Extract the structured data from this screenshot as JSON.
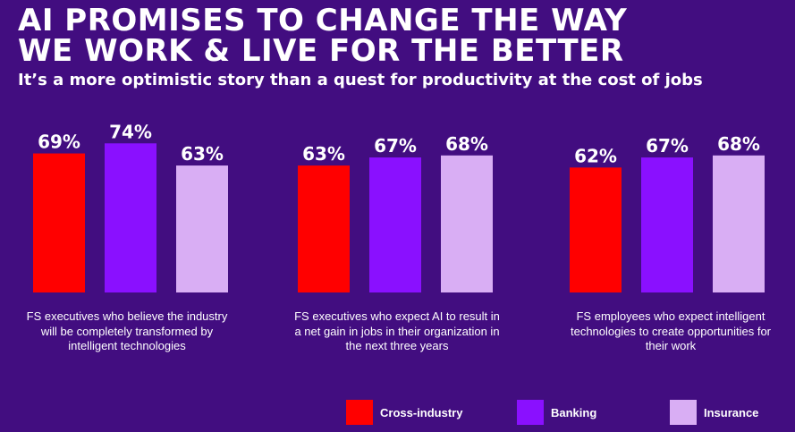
{
  "header": {
    "title_line1": "AI PROMISES TO CHANGE THE WAY",
    "title_line2": "WE WORK &  LIVE FOR THE BETTER",
    "subtitle": "It’s a more optimistic story than a quest for productivity at the cost of jobs"
  },
  "colors": {
    "background": "#420d80",
    "cross_industry": "#ff0000",
    "banking": "#8a10ff",
    "insurance": "#d9aef4"
  },
  "chart_data": {
    "type": "bar",
    "title": "AI PROMISES TO CHANGE THE WAY WE WORK & LIVE FOR THE BETTER",
    "subtitle": "It’s a more optimistic story than a quest for productivity at the cost of jobs",
    "xlabel": "",
    "ylabel": "",
    "value_suffix": "%",
    "categories": [
      "FS executives who believe the industry will be completely transformed by intelligent technologies",
      "FS executives who expect AI to result in a net gain in jobs in their organization in the next three years",
      "FS employees who expect intelligent technologies to create opportunities for their work"
    ],
    "series": [
      {
        "name": "Cross-industry",
        "values": [
          69,
          63,
          62
        ]
      },
      {
        "name": "Banking",
        "values": [
          74,
          67,
          67
        ]
      },
      {
        "name": "Insurance",
        "values": [
          63,
          68,
          68
        ]
      }
    ],
    "legend_position": "bottom-right"
  }
}
